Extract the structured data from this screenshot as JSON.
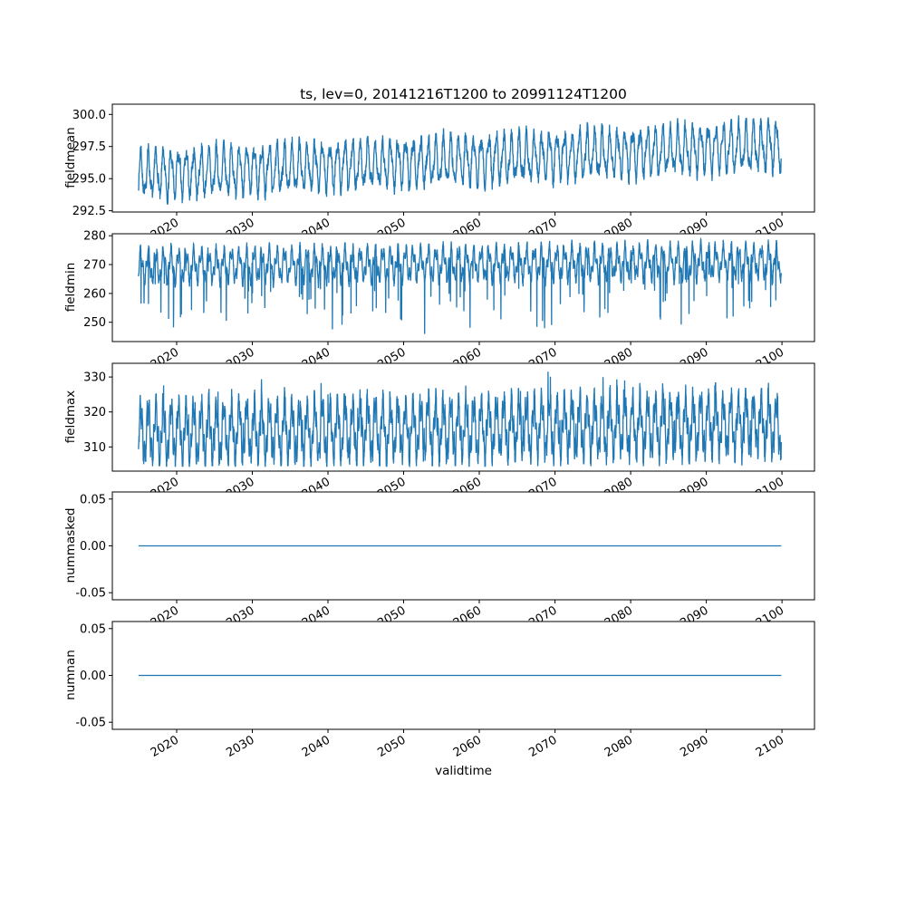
{
  "chart_data": {
    "type": "line",
    "title": "ts, lev=0, 20141216T1200 to 20991124T1200",
    "xlabel": "validtime",
    "x_axis": {
      "lim": [
        2011.5,
        2104.3
      ],
      "data_range": [
        2014.96,
        2099.9
      ],
      "ticks": [
        2020,
        2030,
        2040,
        2050,
        2060,
        2070,
        2080,
        2090,
        2100
      ],
      "tick_labels": [
        "2020",
        "2030",
        "2040",
        "2050",
        "2060",
        "2070",
        "2080",
        "2090",
        "2100"
      ],
      "tick_rotation_deg": 30
    },
    "style": {
      "line_color": "#1f77b4",
      "axis_color": "#000000",
      "background": "#ffffff",
      "grid": false,
      "legend": "none"
    },
    "subplots": [
      {
        "ylabel": "fieldmean",
        "ylim": [
          292.4,
          300.8
        ],
        "yticks": [
          292.5,
          295.0,
          297.5,
          300.0
        ],
        "ytick_labels": [
          "292.5",
          "295.0",
          "297.5",
          "300.0"
        ],
        "summary": "annual cycle of amplitude ~1.7 around a mean rising from ~295.3 (2015) to ~297.7 (2100); min ~292.9, max ~300.4",
        "signal": {
          "kind": "periodic",
          "base": 295.3,
          "trend": 2.3,
          "amplitude": 1.6,
          "amp2": 0.5,
          "freq2": 2.1,
          "noise": 0.5,
          "samples_per_year": 36,
          "clamp": [
            292.85,
            300.4
          ]
        }
      },
      {
        "ylabel": "fieldmin",
        "ylim": [
          243.3,
          280.7
        ],
        "yticks": [
          250,
          260,
          270,
          280
        ],
        "ytick_labels": [
          "250",
          "260",
          "270",
          "280"
        ],
        "summary": "dense oscillation mostly between ~262 and ~278 with irregular downward spikes reaching ~245; upper envelope rises slightly to ~279 after 2060",
        "signal": {
          "kind": "periodic",
          "base": 269.5,
          "trend": 1.5,
          "amplitude": 4.5,
          "amp2": 2.5,
          "freq2": 2.7,
          "noise": 1.3,
          "spike_prob": 0.03,
          "spike_depth": 20,
          "samples_per_year": 48,
          "clamp": [
            244.5,
            278.8
          ]
        }
      },
      {
        "ylabel": "fieldmax",
        "ylim": [
          303.1,
          333.9
        ],
        "yticks": [
          310,
          320,
          330
        ],
        "ytick_labels": [
          "310",
          "320",
          "330"
        ],
        "summary": "dense oscillation between ~305 and ~327 with occasional peaks up to ~332 (around 2070)",
        "signal": {
          "kind": "periodic",
          "base": 314.0,
          "trend": 2.5,
          "amplitude": 7.0,
          "amp2": 3.5,
          "freq2": 3.3,
          "noise": 2.2,
          "peak_prob": 0.02,
          "peak_height": 7,
          "samples_per_year": 48,
          "clamp": [
            304.5,
            332.5
          ]
        }
      },
      {
        "ylabel": "nummasked",
        "ylim": [
          -0.0575,
          0.0575
        ],
        "yticks": [
          -0.05,
          0.0,
          0.05
        ],
        "ytick_labels": [
          "-0.05",
          "0.00",
          "0.05"
        ],
        "summary": "constant zero line for the whole period",
        "signal": {
          "kind": "constant",
          "value": 0
        }
      },
      {
        "ylabel": "numnan",
        "ylim": [
          -0.0575,
          0.0575
        ],
        "yticks": [
          -0.05,
          0.0,
          0.05
        ],
        "ytick_labels": [
          "-0.05",
          "0.00",
          "0.05"
        ],
        "summary": "constant zero line for the whole period",
        "signal": {
          "kind": "constant",
          "value": 0
        }
      }
    ]
  }
}
